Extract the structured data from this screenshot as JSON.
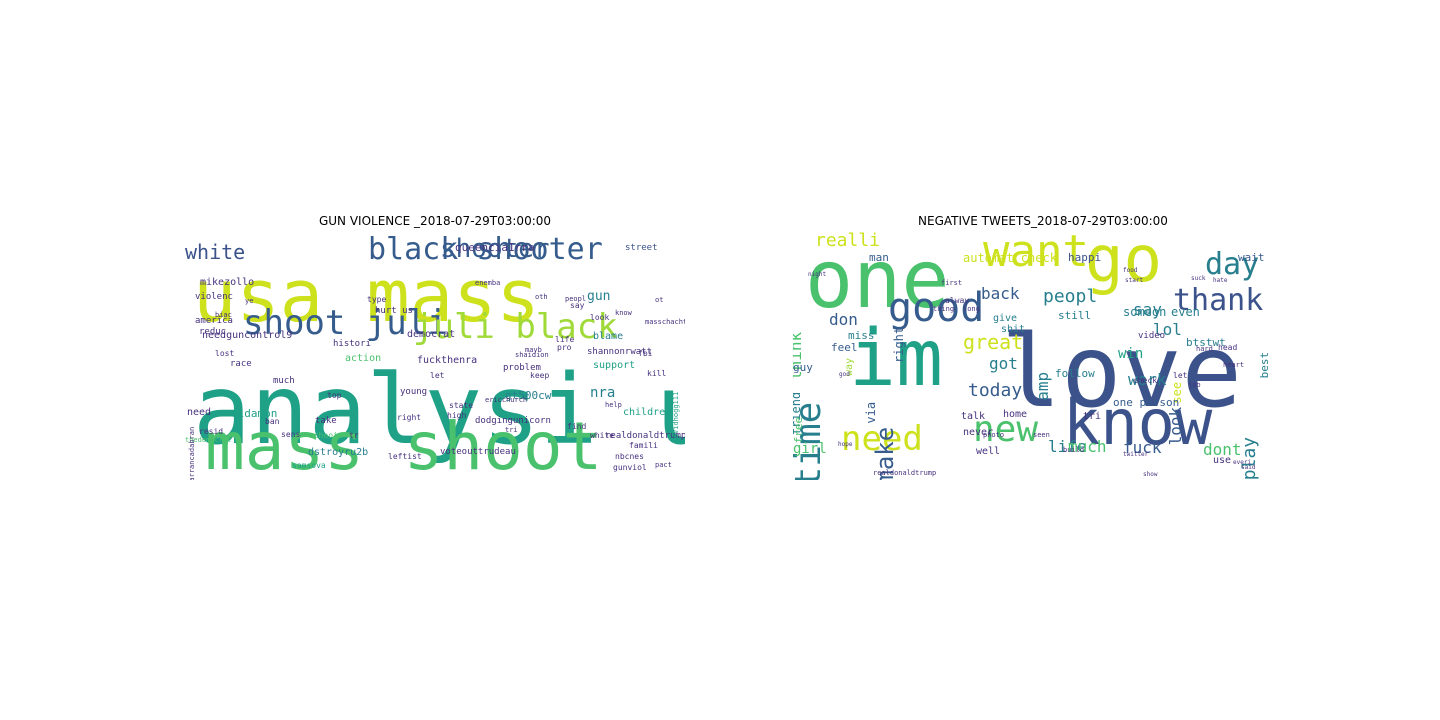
{
  "palette": {
    "purple": "#46327e",
    "indigo": "#3b528b",
    "blue": "#365c8d",
    "teal": "#277f8e",
    "green": "#1fa187",
    "lime": "#4ac16d",
    "yellowgreen": "#a0da39",
    "yellow": "#cde11d"
  },
  "panels": [
    {
      "title": "GUN VIOLENCE _2018-07-29T03:00:00",
      "words": [
        {
          "t": "analysi usa",
          "c": "green",
          "s": 96
        },
        {
          "t": "usa mass",
          "c": "yellow",
          "s": 72
        },
        {
          "t": "mass shoot",
          "c": "lime",
          "s": 66
        },
        {
          "t": "shoot juli",
          "c": "blue",
          "s": 34
        },
        {
          "t": "juli black",
          "c": "yellowgreen",
          "s": 34
        },
        {
          "t": "black shooter",
          "c": "blue",
          "s": 30
        },
        {
          "t": "shooter",
          "c": "blue",
          "s": 26
        },
        {
          "t": "white",
          "c": "indigo",
          "s": 20
        },
        {
          "t": "queencia1rra",
          "c": "purple",
          "s": 11
        },
        {
          "t": "street",
          "c": "indigo",
          "s": 9
        },
        {
          "t": "gun",
          "c": "teal",
          "s": 13
        },
        {
          "t": "mikezollo",
          "c": "purple",
          "s": 10
        },
        {
          "t": "violenc",
          "c": "purple",
          "s": 9
        },
        {
          "t": "needguncontrol9",
          "c": "purple",
          "s": 10
        },
        {
          "t": "shannonrwatt",
          "c": "purple",
          "s": 9
        },
        {
          "t": "democrat",
          "c": "purple",
          "s": 10
        },
        {
          "t": "blame",
          "c": "teal",
          "s": 10
        },
        {
          "t": "support",
          "c": "green",
          "s": 10
        },
        {
          "t": "histori",
          "c": "purple",
          "s": 9
        },
        {
          "t": "action",
          "c": "lime",
          "s": 10
        },
        {
          "t": "fuckthenra",
          "c": "purple",
          "s": 10
        },
        {
          "t": "nra",
          "c": "teal",
          "s": 14
        },
        {
          "t": "problem",
          "c": "purple",
          "s": 9
        },
        {
          "t": "gt500cw",
          "c": "teal",
          "s": 11
        },
        {
          "t": "eldamon",
          "c": "green",
          "s": 11
        },
        {
          "t": "children",
          "c": "green",
          "s": 10
        },
        {
          "t": "need",
          "c": "purple",
          "s": 10
        },
        {
          "t": "dodgingunicorn",
          "c": "purple",
          "s": 9
        },
        {
          "t": "realdonaldtrump",
          "c": "purple",
          "s": 9
        },
        {
          "t": "dstroyru2b",
          "c": "teal",
          "s": 10
        },
        {
          "t": "voteouttrudeau",
          "c": "purple",
          "s": 9
        },
        {
          "t": "nbcnes",
          "c": "purple",
          "s": 8
        },
        {
          "t": "leftist",
          "c": "purple",
          "s": 8
        },
        {
          "t": "samsova",
          "c": "green",
          "s": 8
        },
        {
          "t": "race",
          "c": "purple",
          "s": 9
        },
        {
          "t": "much",
          "c": "purple",
          "s": 9
        },
        {
          "t": "young",
          "c": "purple",
          "s": 9
        },
        {
          "t": "take",
          "c": "purple",
          "s": 9
        },
        {
          "t": "right",
          "c": "purple",
          "s": 8
        },
        {
          "t": "kill",
          "c": "purple",
          "s": 8
        },
        {
          "t": "keep",
          "c": "purple",
          "s": 8
        },
        {
          "t": "state",
          "c": "purple",
          "s": 8
        },
        {
          "t": "hurt us",
          "c": "purple",
          "s": 9
        },
        {
          "t": "type",
          "c": "purple",
          "s": 8
        },
        {
          "t": "america",
          "c": "purple",
          "s": 9
        },
        {
          "t": "reduc",
          "c": "purple",
          "s": 9
        },
        {
          "t": "lost",
          "c": "purple",
          "s": 8
        },
        {
          "t": "top",
          "c": "purple",
          "s": 8
        },
        {
          "t": "ban",
          "c": "purple",
          "s": 8
        },
        {
          "t": "sens",
          "c": "purple",
          "s": 8
        },
        {
          "t": "resid",
          "c": "purple",
          "s": 8
        },
        {
          "t": "schooi",
          "c": "lime",
          "s": 8
        },
        {
          "t": "find",
          "c": "purple",
          "s": 8
        },
        {
          "t": "famili",
          "c": "purple",
          "s": 8
        },
        {
          "t": "gunviol",
          "c": "purple",
          "s": 8
        },
        {
          "t": "high",
          "c": "purple",
          "s": 8
        },
        {
          "t": "look",
          "c": "purple",
          "s": 8
        },
        {
          "t": "white",
          "c": "purple",
          "s": 8
        },
        {
          "t": "let",
          "c": "purple",
          "s": 8
        },
        {
          "t": "say",
          "c": "purple",
          "s": 8
        },
        {
          "t": "pro",
          "c": "purple",
          "s": 8
        },
        {
          "t": "life",
          "c": "purple",
          "s": 8
        },
        {
          "t": "fbi",
          "c": "purple",
          "s": 8
        },
        {
          "t": "peopl",
          "c": "purple",
          "s": 7
        },
        {
          "t": "know",
          "c": "purple",
          "s": 7
        },
        {
          "t": "tr",
          "c": "purple",
          "s": 8
        },
        {
          "t": "ericchurch",
          "c": "purple",
          "s": 7
        },
        {
          "t": "shaidion",
          "c": "purple",
          "s": 7
        },
        {
          "t": "masschacht",
          "c": "purple",
          "s": 7
        },
        {
          "t": "enemba",
          "c": "purple",
          "s": 7
        },
        {
          "t": "thedemocrat",
          "c": "lime",
          "s": 7
        },
        {
          "t": "arrancadabran",
          "c": "purple",
          "s": 7
        },
        {
          "t": "davidhogg111",
          "c": "green",
          "s": 7
        },
        {
          "t": "mayb",
          "c": "purple",
          "s": 7
        },
        {
          "t": "help",
          "c": "purple",
          "s": 7
        },
        {
          "t": "ot",
          "c": "purple",
          "s": 7
        },
        {
          "t": "biac",
          "c": "purple",
          "s": 7
        },
        {
          "t": "tri",
          "c": "purple",
          "s": 7
        },
        {
          "t": "ye",
          "c": "purple",
          "s": 7
        },
        {
          "t": "oth",
          "c": "purple",
          "s": 7
        },
        {
          "t": "pact",
          "c": "purple",
          "s": 7
        }
      ]
    },
    {
      "title": "NEGATIVE TWEETS_2018-07-29T03:00:00",
      "words": [
        {
          "t": "love",
          "c": "indigo",
          "s": 100
        },
        {
          "t": "one",
          "c": "lime",
          "s": 80
        },
        {
          "t": "im",
          "c": "green",
          "s": 78
        },
        {
          "t": "know",
          "c": "indigo",
          "s": 62
        },
        {
          "t": "go",
          "c": "yellow",
          "s": 64
        },
        {
          "t": "want",
          "c": "yellow",
          "s": 44
        },
        {
          "t": "good",
          "c": "blue",
          "s": 40
        },
        {
          "t": "time",
          "c": "teal",
          "s": 36
        },
        {
          "t": "need",
          "c": "yellow",
          "s": 34
        },
        {
          "t": "new",
          "c": "lime",
          "s": 36
        },
        {
          "t": "thank",
          "c": "indigo",
          "s": 30
        },
        {
          "t": "day",
          "c": "teal",
          "s": 30
        },
        {
          "t": "make",
          "c": "blue",
          "s": 24
        },
        {
          "t": "great",
          "c": "yellow",
          "s": 20
        },
        {
          "t": "realli",
          "c": "yellow",
          "s": 18
        },
        {
          "t": "peopl",
          "c": "teal",
          "s": 18
        },
        {
          "t": "say",
          "c": "teal",
          "s": 16
        },
        {
          "t": "back",
          "c": "blue",
          "s": 16
        },
        {
          "t": "look",
          "c": "blue",
          "s": 16
        },
        {
          "t": "play",
          "c": "teal",
          "s": 18
        },
        {
          "t": "think",
          "c": "lime",
          "s": 16
        },
        {
          "t": "don",
          "c": "blue",
          "s": 16
        },
        {
          "t": "today",
          "c": "blue",
          "s": 18
        },
        {
          "t": "got",
          "c": "teal",
          "s": 16
        },
        {
          "t": "lol",
          "c": "teal",
          "s": 16
        },
        {
          "t": "work",
          "c": "teal",
          "s": 16
        },
        {
          "t": "life",
          "c": "teal",
          "s": 16
        },
        {
          "t": "much",
          "c": "lime",
          "s": 16
        },
        {
          "t": "fuck",
          "c": "blue",
          "s": 16
        },
        {
          "t": "dont",
          "c": "lime",
          "s": 16
        },
        {
          "t": "amp",
          "c": "teal",
          "s": 16
        },
        {
          "t": "win",
          "c": "green",
          "s": 14
        },
        {
          "t": "girl",
          "c": "lime",
          "s": 14
        },
        {
          "t": "friend",
          "c": "teal",
          "s": 12
        },
        {
          "t": "right",
          "c": "blue",
          "s": 12
        },
        {
          "t": "via",
          "c": "blue",
          "s": 12
        },
        {
          "t": "automat check",
          "c": "yellow",
          "s": 12
        },
        {
          "t": "happi",
          "c": "indigo",
          "s": 11
        },
        {
          "t": "wait",
          "c": "blue",
          "s": 11
        },
        {
          "t": "man",
          "c": "blue",
          "s": 11
        },
        {
          "t": "someon",
          "c": "teal",
          "s": 12
        },
        {
          "t": "even",
          "c": "teal",
          "s": 12
        },
        {
          "t": "still",
          "c": "teal",
          "s": 11
        },
        {
          "t": "give",
          "c": "teal",
          "s": 10
        },
        {
          "t": "shit",
          "c": "teal",
          "s": 10
        },
        {
          "t": "miss",
          "c": "teal",
          "s": 11
        },
        {
          "t": "feel",
          "c": "blue",
          "s": 11
        },
        {
          "t": "guy",
          "c": "blue",
          "s": 11
        },
        {
          "t": "way",
          "c": "yellowgreen",
          "s": 10
        },
        {
          "t": "btstwt",
          "c": "teal",
          "s": 11
        },
        {
          "t": "see",
          "c": "yellow",
          "s": 12
        },
        {
          "t": "best",
          "c": "teal",
          "s": 11
        },
        {
          "t": "follow",
          "c": "teal",
          "s": 11
        },
        {
          "t": "one person",
          "c": "blue",
          "s": 11
        },
        {
          "t": "home",
          "c": "purple",
          "s": 10
        },
        {
          "t": "talk",
          "c": "purple",
          "s": 10
        },
        {
          "t": "well",
          "c": "purple",
          "s": 10
        },
        {
          "t": "never",
          "c": "purple",
          "s": 10
        },
        {
          "t": "free",
          "c": "lime",
          "s": 11
        },
        {
          "t": "use",
          "c": "purple",
          "s": 10
        },
        {
          "t": "tri",
          "c": "purple",
          "s": 10
        },
        {
          "t": "video",
          "c": "purple",
          "s": 9
        },
        {
          "t": "check",
          "c": "purple",
          "s": 8
        },
        {
          "t": "head",
          "c": "purple",
          "s": 8
        },
        {
          "t": "let",
          "c": "purple",
          "s": 8
        },
        {
          "t": "job",
          "c": "purple",
          "s": 7
        },
        {
          "t": "build",
          "c": "purple",
          "s": 7
        },
        {
          "t": "photo",
          "c": "purple",
          "s": 7
        },
        {
          "t": "seen",
          "c": "purple",
          "s": 7
        },
        {
          "t": "hard",
          "c": "purple",
          "s": 7
        },
        {
          "t": "heart",
          "c": "purple",
          "s": 7
        },
        {
          "t": "alway",
          "c": "purple",
          "s": 8
        },
        {
          "t": "long",
          "c": "purple",
          "s": 7
        },
        {
          "t": "thing",
          "c": "purple",
          "s": 7
        },
        {
          "t": "first",
          "c": "purple",
          "s": 7
        },
        {
          "t": "realdonaldtrump",
          "c": "purple",
          "s": 7
        },
        {
          "t": "start",
          "c": "purple",
          "s": 6
        },
        {
          "t": "food",
          "c": "purple",
          "s": 6
        },
        {
          "t": "hate",
          "c": "purple",
          "s": 6
        },
        {
          "t": "suck",
          "c": "purple",
          "s": 6
        },
        {
          "t": "said",
          "c": "purple",
          "s": 6
        },
        {
          "t": "show",
          "c": "purple",
          "s": 6
        },
        {
          "t": "hope",
          "c": "purple",
          "s": 6
        },
        {
          "t": "god",
          "c": "purple",
          "s": 6
        },
        {
          "t": "night",
          "c": "purple",
          "s": 6
        },
        {
          "t": "twitter",
          "c": "purple",
          "s": 6
        },
        {
          "t": "everi",
          "c": "purple",
          "s": 6
        }
      ]
    }
  ]
}
